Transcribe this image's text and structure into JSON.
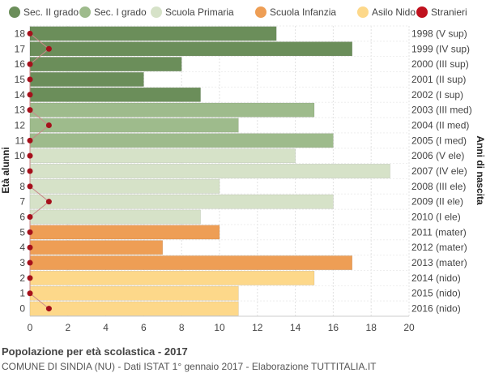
{
  "chart_data": {
    "type": "bar",
    "orientation": "horizontal",
    "xlim": [
      0,
      20
    ],
    "x_ticks": [
      "0",
      "2",
      "4",
      "6",
      "8",
      "10",
      "12",
      "14",
      "16",
      "18",
      "20"
    ],
    "ylabel_left": "Età alunni",
    "ylabel_right": "Anni di nascita",
    "grid": true,
    "legend_position": "top",
    "legend": [
      {
        "label": "Sec. II grado",
        "color": "#6b8e5a"
      },
      {
        "label": "Sec. I grado",
        "color": "#9ebb8c"
      },
      {
        "label": "Scuola Primaria",
        "color": "#d6e2c8"
      },
      {
        "label": "Scuola Infanzia",
        "color": "#ee9e55"
      },
      {
        "label": "Asilo Nido",
        "color": "#fdd88a"
      },
      {
        "label": "Stranieri",
        "color": "#c0111e"
      }
    ],
    "rows": [
      {
        "age": "18",
        "year": "1998 (V sup)",
        "value": 13,
        "stranieri": 0,
        "school": "Sec. II grado"
      },
      {
        "age": "17",
        "year": "1999 (IV sup)",
        "value": 17,
        "stranieri": 1,
        "school": "Sec. II grado"
      },
      {
        "age": "16",
        "year": "2000 (III sup)",
        "value": 8,
        "stranieri": 0,
        "school": "Sec. II grado"
      },
      {
        "age": "15",
        "year": "2001 (II sup)",
        "value": 6,
        "stranieri": 0,
        "school": "Sec. II grado"
      },
      {
        "age": "14",
        "year": "2002 (I sup)",
        "value": 9,
        "stranieri": 0,
        "school": "Sec. II grado"
      },
      {
        "age": "13",
        "year": "2003 (III med)",
        "value": 15,
        "stranieri": 0,
        "school": "Sec. I grado"
      },
      {
        "age": "12",
        "year": "2004 (II med)",
        "value": 11,
        "stranieri": 1,
        "school": "Sec. I grado"
      },
      {
        "age": "11",
        "year": "2005 (I med)",
        "value": 16,
        "stranieri": 0,
        "school": "Sec. I grado"
      },
      {
        "age": "10",
        "year": "2006 (V ele)",
        "value": 14,
        "stranieri": 0,
        "school": "Scuola Primaria"
      },
      {
        "age": "9",
        "year": "2007 (IV ele)",
        "value": 19,
        "stranieri": 0,
        "school": "Scuola Primaria"
      },
      {
        "age": "8",
        "year": "2008 (III ele)",
        "value": 10,
        "stranieri": 0,
        "school": "Scuola Primaria"
      },
      {
        "age": "7",
        "year": "2009 (II ele)",
        "value": 16,
        "stranieri": 1,
        "school": "Scuola Primaria"
      },
      {
        "age": "6",
        "year": "2010 (I ele)",
        "value": 9,
        "stranieri": 0,
        "school": "Scuola Primaria"
      },
      {
        "age": "5",
        "year": "2011 (mater)",
        "value": 10,
        "stranieri": 0,
        "school": "Scuola Infanzia"
      },
      {
        "age": "4",
        "year": "2012 (mater)",
        "value": 7,
        "stranieri": 0,
        "school": "Scuola Infanzia"
      },
      {
        "age": "3",
        "year": "2013 (mater)",
        "value": 17,
        "stranieri": 0,
        "school": "Scuola Infanzia"
      },
      {
        "age": "2",
        "year": "2014 (nido)",
        "value": 15,
        "stranieri": 0,
        "school": "Asilo Nido"
      },
      {
        "age": "1",
        "year": "2015 (nido)",
        "value": 11,
        "stranieri": 0,
        "school": "Asilo Nido"
      },
      {
        "age": "0",
        "year": "2016 (nido)",
        "value": 11,
        "stranieri": 1,
        "school": "Asilo Nido"
      }
    ]
  },
  "footer": {
    "title": "Popolazione per età scolastica - 2017",
    "subtitle": "COMUNE DI SINDIA (NU) - Dati ISTAT 1° gennaio 2017 - Elaborazione TUTTITALIA.IT"
  }
}
